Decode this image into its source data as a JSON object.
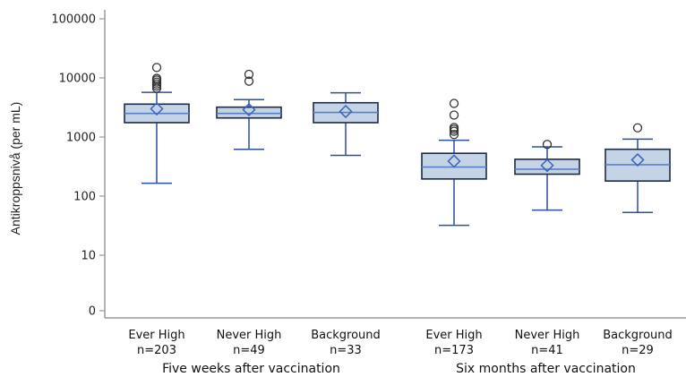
{
  "chart_data": {
    "type": "box",
    "ylabel": "Antikroppsnivå (per mL)",
    "yscale": "log",
    "yticks": [
      {
        "value": 0,
        "label": "0"
      },
      {
        "value": 10,
        "label": "10"
      },
      {
        "value": 100,
        "label": "100"
      },
      {
        "value": 1000,
        "label": "1000"
      },
      {
        "value": 10000,
        "label": "10000"
      },
      {
        "value": 100000,
        "label": "100000"
      }
    ],
    "grid": false,
    "colors": {
      "box_fill": "#c5d3e6",
      "box_stroke": "#1f2a44",
      "whisker": "#2d4f9e",
      "median": "#5b7fc4",
      "mean_marker": "#3a64b8",
      "outlier": "#333333",
      "axis": "#9a9a9a"
    },
    "groups": [
      {
        "label": "Five weeks after vaccination",
        "categories": [
          0,
          1,
          2
        ]
      },
      {
        "label": "Six months after vaccination",
        "categories": [
          3,
          4,
          5
        ]
      }
    ],
    "boxes": [
      {
        "category": "Ever High",
        "n_label": "n=203",
        "whisker_low": 165,
        "q1": 1750,
        "median": 2500,
        "q3": 3600,
        "whisker_high": 5700,
        "mean": 3000,
        "outliers": [
          6700,
          7300,
          7900,
          8500,
          9200,
          9800,
          15000
        ]
      },
      {
        "category": "Never High",
        "n_label": "n=49",
        "whisker_low": 620,
        "q1": 2100,
        "median": 2500,
        "q3": 3200,
        "whisker_high": 4300,
        "mean": 2900,
        "outliers": [
          8800,
          11500
        ]
      },
      {
        "category": "Background",
        "n_label": "n=33",
        "whisker_low": 490,
        "q1": 1750,
        "median": 2600,
        "q3": 3800,
        "whisker_high": 5600,
        "mean": 2700,
        "outliers": []
      },
      {
        "category": "Ever High",
        "n_label": "n=173",
        "whisker_low": 32,
        "q1": 195,
        "median": 310,
        "q3": 530,
        "whisker_high": 880,
        "mean": 390,
        "outliers": [
          1100,
          1250,
          1350,
          1450,
          2350,
          3700
        ]
      },
      {
        "category": "Never High",
        "n_label": "n=41",
        "whisker_low": 58,
        "q1": 235,
        "median": 285,
        "q3": 420,
        "whisker_high": 680,
        "mean": 330,
        "outliers": [
          750
        ]
      },
      {
        "category": "Background",
        "n_label": "n=29",
        "whisker_low": 53,
        "q1": 180,
        "median": 340,
        "q3": 620,
        "whisker_high": 920,
        "mean": 410,
        "outliers": [
          1430
        ]
      }
    ]
  }
}
